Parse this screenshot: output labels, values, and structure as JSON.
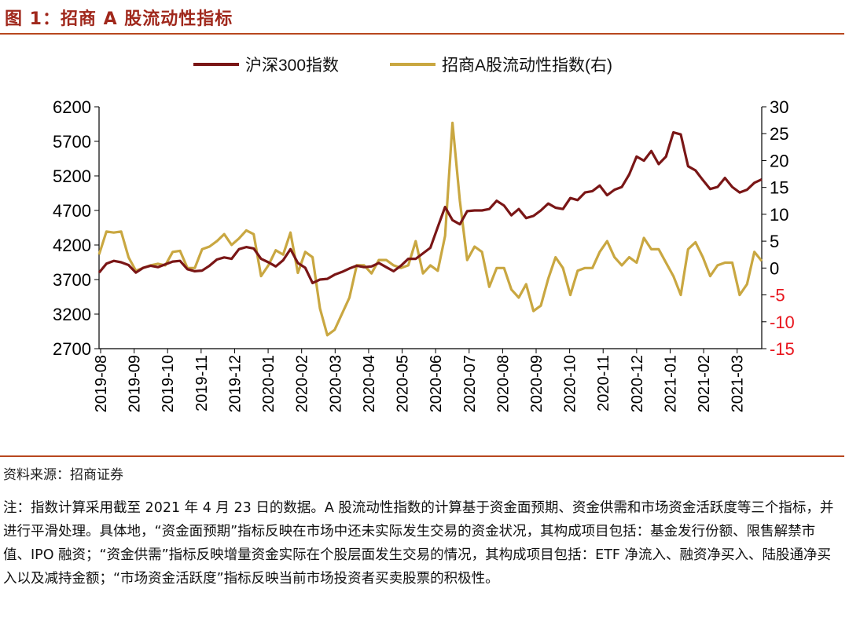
{
  "header": {
    "title": "图 1：招商 A 股流动性指标"
  },
  "footer": {
    "source": "资料来源：招商证券",
    "note": "注：指数计算采用截至 2021 年 4 月 23 日的数据。A 股流动性指数的计算基于资金面预期、资金供需和市场资金活跃度等三个指标，并进行平滑处理。具体地，“资金面预期”指标反映在市场中还未实际发生交易的资金状况，其构成项目包括：基金发行份额、限售解禁市值、IPO 融资；“资金供需”指标反映增量资金实际在个股层面发生交易的情况，其构成项目包括：ETF 净流入、融资净买入、陆股通净买入以及减持金额；“市场资金活跃度”指标反映当前市场投资者买卖股票的积极性。"
  },
  "chart_data": {
    "type": "line",
    "title": "",
    "legend_position": "top-center",
    "grid": false,
    "x_tick_labels": [
      "2019-08",
      "2019-09",
      "2019-10",
      "2019-11",
      "2019-12",
      "2020-01",
      "2020-02",
      "2020-03",
      "2020-04",
      "2020-05",
      "2020-06",
      "2020-07",
      "2020-08",
      "2020-09",
      "2020-10",
      "2020-11",
      "2020-12",
      "2021-01",
      "2021-02",
      "2021-03"
    ],
    "y_left": {
      "ylim": [
        2700,
        6200
      ],
      "ticks": [
        "6200",
        "5700",
        "5200",
        "4700",
        "4200",
        "3700",
        "3200",
        "2700"
      ],
      "color": "#000000"
    },
    "y_right": {
      "ylim": [
        -15,
        30
      ],
      "ticks": [
        "30",
        "25",
        "20",
        "15",
        "10",
        "5",
        "0",
        "-5",
        "-10",
        "-15"
      ],
      "negative_color": "#e8141c"
    },
    "series": [
      {
        "name": "沪深300指数",
        "axis": "left",
        "color": "#7a1616",
        "x": [
          "2019-08-02",
          "2019-08-09",
          "2019-08-16",
          "2019-08-23",
          "2019-08-30",
          "2019-09-06",
          "2019-09-13",
          "2019-09-20",
          "2019-09-27",
          "2019-10-04",
          "2019-10-11",
          "2019-10-18",
          "2019-10-25",
          "2019-11-01",
          "2019-11-08",
          "2019-11-15",
          "2019-11-22",
          "2019-11-29",
          "2019-12-06",
          "2019-12-13",
          "2019-12-20",
          "2019-12-27",
          "2020-01-03",
          "2020-01-10",
          "2020-01-17",
          "2020-01-24",
          "2020-01-31",
          "2020-02-07",
          "2020-02-14",
          "2020-02-21",
          "2020-02-28",
          "2020-03-06",
          "2020-03-13",
          "2020-03-20",
          "2020-03-27",
          "2020-04-03",
          "2020-04-10",
          "2020-04-17",
          "2020-04-24",
          "2020-05-01",
          "2020-05-08",
          "2020-05-15",
          "2020-05-22",
          "2020-05-29",
          "2020-06-05",
          "2020-06-12",
          "2020-06-19",
          "2020-06-26",
          "2020-07-03",
          "2020-07-10",
          "2020-07-17",
          "2020-07-24",
          "2020-07-31",
          "2020-08-07",
          "2020-08-14",
          "2020-08-21",
          "2020-08-28",
          "2020-09-04",
          "2020-09-11",
          "2020-09-18",
          "2020-09-25",
          "2020-10-02",
          "2020-10-09",
          "2020-10-16",
          "2020-10-23",
          "2020-10-30",
          "2020-11-06",
          "2020-11-13",
          "2020-11-20",
          "2020-11-27",
          "2020-12-04",
          "2020-12-11",
          "2020-12-18",
          "2020-12-25",
          "2021-01-01",
          "2021-01-08",
          "2021-01-15",
          "2021-01-22",
          "2021-01-29",
          "2021-02-05",
          "2021-02-12",
          "2021-02-19",
          "2021-02-26",
          "2021-03-05",
          "2021-03-12",
          "2021-03-19",
          "2021-03-26",
          "2021-04-02",
          "2021-04-09",
          "2021-04-16",
          "2021-04-23"
        ],
        "values": [
          3800,
          3930,
          3970,
          3950,
          3910,
          3800,
          3870,
          3900,
          3880,
          3920,
          3960,
          3970,
          3850,
          3820,
          3830,
          3900,
          3990,
          4020,
          4000,
          4140,
          4170,
          4150,
          4000,
          3950,
          3890,
          3980,
          4140,
          3940,
          3870,
          3650,
          3700,
          3710,
          3770,
          3810,
          3860,
          3900,
          3880,
          3890,
          3940,
          3880,
          3820,
          3900,
          4000,
          4000,
          4080,
          4160,
          4460,
          4750,
          4560,
          4500,
          4690,
          4700,
          4700,
          4720,
          4840,
          4770,
          4630,
          4720,
          4590,
          4620,
          4700,
          4800,
          4740,
          4720,
          4880,
          4850,
          4960,
          4980,
          5060,
          4920,
          5000,
          5040,
          5220,
          5480,
          5420,
          5560,
          5370,
          5480,
          5830,
          5800,
          5340,
          5280,
          5140,
          5010,
          5040,
          5170,
          5040,
          4960,
          5000,
          5100,
          5150
        ]
      },
      {
        "name": "招商A股流动性指数(右)",
        "axis": "right",
        "color": "#c9a741",
        "x": [
          "2019-08-02",
          "2019-08-09",
          "2019-08-16",
          "2019-08-23",
          "2019-08-30",
          "2019-09-06",
          "2019-09-13",
          "2019-09-20",
          "2019-09-27",
          "2019-10-04",
          "2019-10-11",
          "2019-10-18",
          "2019-10-25",
          "2019-11-01",
          "2019-11-08",
          "2019-11-15",
          "2019-11-22",
          "2019-11-29",
          "2019-12-06",
          "2019-12-13",
          "2019-12-20",
          "2019-12-27",
          "2020-01-03",
          "2020-01-10",
          "2020-01-17",
          "2020-01-24",
          "2020-01-31",
          "2020-02-07",
          "2020-02-14",
          "2020-02-21",
          "2020-02-28",
          "2020-03-06",
          "2020-03-13",
          "2020-03-20",
          "2020-03-27",
          "2020-04-03",
          "2020-04-10",
          "2020-04-17",
          "2020-04-24",
          "2020-05-01",
          "2020-05-08",
          "2020-05-15",
          "2020-05-22",
          "2020-05-29",
          "2020-06-05",
          "2020-06-12",
          "2020-06-19",
          "2020-06-26",
          "2020-07-03",
          "2020-07-10",
          "2020-07-17",
          "2020-07-24",
          "2020-07-31",
          "2020-08-07",
          "2020-08-14",
          "2020-08-21",
          "2020-08-28",
          "2020-09-04",
          "2020-09-11",
          "2020-09-18",
          "2020-09-25",
          "2020-10-02",
          "2020-10-09",
          "2020-10-16",
          "2020-10-23",
          "2020-10-30",
          "2020-11-06",
          "2020-11-13",
          "2020-11-20",
          "2020-11-27",
          "2020-12-04",
          "2020-12-11",
          "2020-12-18",
          "2020-12-25",
          "2021-01-01",
          "2021-01-08",
          "2021-01-15",
          "2021-01-22",
          "2021-01-29",
          "2021-02-05",
          "2021-02-12",
          "2021-02-19",
          "2021-02-26",
          "2021-03-05",
          "2021-03-12",
          "2021-03-19",
          "2021-03-26",
          "2021-04-02",
          "2021-04-09",
          "2021-04-16",
          "2021-04-23"
        ],
        "values": [
          2.5,
          6.8,
          6.6,
          6.8,
          2.0,
          -0.5,
          0.0,
          0.5,
          0.8,
          0.5,
          3.0,
          3.2,
          0.0,
          0.0,
          3.5,
          4.0,
          5.0,
          6.3,
          4.3,
          5.5,
          7.0,
          6.3,
          -1.5,
          0.5,
          3.3,
          2.5,
          6.6,
          -0.9,
          3.0,
          2.0,
          -7.5,
          -12.5,
          -11.5,
          -8.5,
          -5.5,
          0.5,
          0.5,
          -1.0,
          1.5,
          1.5,
          0.5,
          0.0,
          0.5,
          5.0,
          -1.0,
          0.5,
          -0.5,
          6.0,
          27.0,
          12.5,
          1.5,
          4.0,
          3.0,
          -3.5,
          0.0,
          0.0,
          -4.0,
          -5.5,
          -3.0,
          -8.0,
          -7.0,
          -2.0,
          2.0,
          0.0,
          -5.0,
          -0.5,
          0.0,
          0.0,
          3.0,
          5.0,
          2.0,
          0.5,
          2.0,
          1.0,
          5.6,
          3.5,
          3.5,
          1.0,
          -1.5,
          -5.0,
          3.5,
          4.8,
          2.0,
          -1.5,
          0.5,
          1.0,
          1.0,
          -5.0,
          -3.0,
          3.0,
          1.3
        ]
      }
    ]
  }
}
